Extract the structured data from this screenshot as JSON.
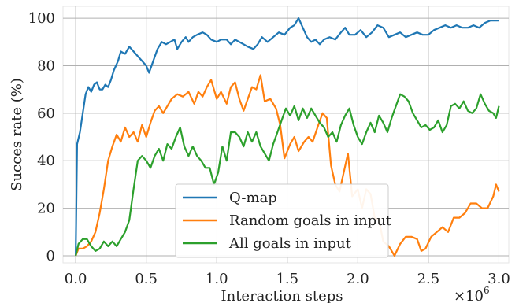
{
  "chart_data": {
    "type": "line",
    "xlabel": "Interaction steps",
    "ylabel": "Succes rate (%)",
    "x_multiplier_label": "×10",
    "x_multiplier_exp": "6",
    "xlim": [
      -0.09,
      3.07
    ],
    "ylim": [
      -3,
      105
    ],
    "xticks": [
      0.0,
      0.5,
      1.0,
      1.5,
      2.0,
      2.5,
      3.0
    ],
    "xtick_labels": [
      "0.0",
      "0.5",
      "1.0",
      "1.5",
      "2.0",
      "2.5",
      "3.0"
    ],
    "yticks": [
      0,
      20,
      40,
      60,
      80,
      100
    ],
    "ytick_labels": [
      "0",
      "20",
      "40",
      "60",
      "80",
      "100"
    ],
    "grid": true,
    "legend_position": "lower-center",
    "series": [
      {
        "name": "Q-map",
        "color": "#1f77b4",
        "points": [
          [
            0.0,
            0
          ],
          [
            0.01,
            47
          ],
          [
            0.03,
            52
          ],
          [
            0.05,
            60
          ],
          [
            0.07,
            68
          ],
          [
            0.09,
            71
          ],
          [
            0.11,
            69
          ],
          [
            0.13,
            72
          ],
          [
            0.15,
            73
          ],
          [
            0.17,
            70
          ],
          [
            0.19,
            70
          ],
          [
            0.21,
            72
          ],
          [
            0.23,
            71
          ],
          [
            0.25,
            74
          ],
          [
            0.27,
            78
          ],
          [
            0.3,
            82
          ],
          [
            0.32,
            86
          ],
          [
            0.35,
            85
          ],
          [
            0.38,
            88
          ],
          [
            0.41,
            86
          ],
          [
            0.44,
            84
          ],
          [
            0.47,
            82
          ],
          [
            0.5,
            80
          ],
          [
            0.52,
            77
          ],
          [
            0.55,
            82
          ],
          [
            0.58,
            87
          ],
          [
            0.61,
            90
          ],
          [
            0.64,
            89
          ],
          [
            0.67,
            90
          ],
          [
            0.7,
            91
          ],
          [
            0.72,
            87
          ],
          [
            0.75,
            90
          ],
          [
            0.78,
            92
          ],
          [
            0.8,
            90
          ],
          [
            0.83,
            92
          ],
          [
            0.86,
            93
          ],
          [
            0.9,
            94
          ],
          [
            0.93,
            93
          ],
          [
            0.96,
            91
          ],
          [
            1.0,
            90
          ],
          [
            1.03,
            91
          ],
          [
            1.07,
            91
          ],
          [
            1.1,
            89
          ],
          [
            1.13,
            91
          ],
          [
            1.16,
            90
          ],
          [
            1.19,
            89
          ],
          [
            1.22,
            88
          ],
          [
            1.26,
            87
          ],
          [
            1.29,
            89
          ],
          [
            1.32,
            92
          ],
          [
            1.36,
            90
          ],
          [
            1.4,
            92
          ],
          [
            1.44,
            94
          ],
          [
            1.48,
            93
          ],
          [
            1.52,
            96
          ],
          [
            1.55,
            97
          ],
          [
            1.58,
            100
          ],
          [
            1.61,
            96
          ],
          [
            1.64,
            92
          ],
          [
            1.67,
            90
          ],
          [
            1.7,
            91
          ],
          [
            1.73,
            89
          ],
          [
            1.76,
            91
          ],
          [
            1.8,
            92
          ],
          [
            1.84,
            91
          ],
          [
            1.88,
            94
          ],
          [
            1.91,
            96
          ],
          [
            1.94,
            93
          ],
          [
            1.98,
            93
          ],
          [
            2.02,
            95
          ],
          [
            2.06,
            92
          ],
          [
            2.1,
            94
          ],
          [
            2.14,
            97
          ],
          [
            2.18,
            96
          ],
          [
            2.22,
            92
          ],
          [
            2.26,
            93
          ],
          [
            2.3,
            94
          ],
          [
            2.34,
            92
          ],
          [
            2.38,
            93
          ],
          [
            2.42,
            94
          ],
          [
            2.46,
            93
          ],
          [
            2.5,
            93
          ],
          [
            2.54,
            95
          ],
          [
            2.58,
            96
          ],
          [
            2.62,
            97
          ],
          [
            2.66,
            96
          ],
          [
            2.7,
            97
          ],
          [
            2.74,
            96
          ],
          [
            2.78,
            96
          ],
          [
            2.82,
            97
          ],
          [
            2.86,
            96
          ],
          [
            2.9,
            98
          ],
          [
            2.94,
            99
          ],
          [
            2.98,
            99
          ],
          [
            3.0,
            99
          ]
        ]
      },
      {
        "name": "Random goals in input",
        "color": "#ff7f0e",
        "points": [
          [
            0.0,
            0
          ],
          [
            0.02,
            3
          ],
          [
            0.05,
            3
          ],
          [
            0.08,
            4
          ],
          [
            0.11,
            6
          ],
          [
            0.14,
            10
          ],
          [
            0.17,
            18
          ],
          [
            0.2,
            28
          ],
          [
            0.23,
            40
          ],
          [
            0.26,
            46
          ],
          [
            0.29,
            51
          ],
          [
            0.32,
            48
          ],
          [
            0.35,
            54
          ],
          [
            0.38,
            50
          ],
          [
            0.41,
            52
          ],
          [
            0.44,
            48
          ],
          [
            0.47,
            55
          ],
          [
            0.5,
            50
          ],
          [
            0.53,
            56
          ],
          [
            0.56,
            61
          ],
          [
            0.59,
            63
          ],
          [
            0.62,
            60
          ],
          [
            0.65,
            63
          ],
          [
            0.68,
            66
          ],
          [
            0.72,
            68
          ],
          [
            0.76,
            67
          ],
          [
            0.8,
            69
          ],
          [
            0.84,
            64
          ],
          [
            0.87,
            69
          ],
          [
            0.9,
            67
          ],
          [
            0.93,
            71
          ],
          [
            0.96,
            74
          ],
          [
            1.0,
            66
          ],
          [
            1.03,
            69
          ],
          [
            1.07,
            64
          ],
          [
            1.1,
            71
          ],
          [
            1.13,
            73
          ],
          [
            1.16,
            66
          ],
          [
            1.19,
            61
          ],
          [
            1.22,
            66
          ],
          [
            1.25,
            71
          ],
          [
            1.28,
            70
          ],
          [
            1.31,
            76
          ],
          [
            1.34,
            65
          ],
          [
            1.38,
            66
          ],
          [
            1.42,
            62
          ],
          [
            1.45,
            55
          ],
          [
            1.48,
            41
          ],
          [
            1.52,
            47
          ],
          [
            1.55,
            50
          ],
          [
            1.58,
            44
          ],
          [
            1.62,
            48
          ],
          [
            1.65,
            50
          ],
          [
            1.68,
            48
          ],
          [
            1.72,
            55
          ],
          [
            1.75,
            60
          ],
          [
            1.78,
            58
          ],
          [
            1.81,
            38
          ],
          [
            1.84,
            30
          ],
          [
            1.87,
            27
          ],
          [
            1.9,
            35
          ],
          [
            1.93,
            43
          ],
          [
            1.96,
            25
          ],
          [
            2.0,
            28
          ],
          [
            2.03,
            20
          ],
          [
            2.06,
            28
          ],
          [
            2.09,
            26
          ],
          [
            2.12,
            16
          ],
          [
            2.15,
            15
          ],
          [
            2.18,
            6
          ],
          [
            2.22,
            4
          ],
          [
            2.26,
            0
          ],
          [
            2.3,
            5
          ],
          [
            2.34,
            8
          ],
          [
            2.38,
            8
          ],
          [
            2.42,
            7
          ],
          [
            2.45,
            2
          ],
          [
            2.48,
            3
          ],
          [
            2.52,
            8
          ],
          [
            2.56,
            10
          ],
          [
            2.6,
            12
          ],
          [
            2.64,
            10
          ],
          [
            2.68,
            16
          ],
          [
            2.72,
            16
          ],
          [
            2.76,
            18
          ],
          [
            2.8,
            22
          ],
          [
            2.84,
            22
          ],
          [
            2.88,
            20
          ],
          [
            2.92,
            20
          ],
          [
            2.96,
            25
          ],
          [
            2.98,
            30
          ],
          [
            3.0,
            27
          ]
        ]
      },
      {
        "name": "All goals in input",
        "color": "#2ca02c",
        "points": [
          [
            0.0,
            0
          ],
          [
            0.02,
            5
          ],
          [
            0.05,
            7
          ],
          [
            0.08,
            7
          ],
          [
            0.11,
            4
          ],
          [
            0.14,
            2
          ],
          [
            0.17,
            3
          ],
          [
            0.2,
            6
          ],
          [
            0.23,
            4
          ],
          [
            0.26,
            6
          ],
          [
            0.29,
            4
          ],
          [
            0.32,
            7
          ],
          [
            0.35,
            10
          ],
          [
            0.38,
            15
          ],
          [
            0.41,
            28
          ],
          [
            0.44,
            40
          ],
          [
            0.47,
            42
          ],
          [
            0.5,
            40
          ],
          [
            0.53,
            37
          ],
          [
            0.56,
            42
          ],
          [
            0.59,
            45
          ],
          [
            0.62,
            40
          ],
          [
            0.65,
            47
          ],
          [
            0.68,
            45
          ],
          [
            0.71,
            50
          ],
          [
            0.74,
            54
          ],
          [
            0.77,
            46
          ],
          [
            0.8,
            42
          ],
          [
            0.83,
            46
          ],
          [
            0.86,
            42
          ],
          [
            0.89,
            40
          ],
          [
            0.92,
            37
          ],
          [
            0.95,
            37
          ],
          [
            0.98,
            30
          ],
          [
            1.01,
            35
          ],
          [
            1.04,
            46
          ],
          [
            1.07,
            40
          ],
          [
            1.1,
            52
          ],
          [
            1.13,
            52
          ],
          [
            1.16,
            50
          ],
          [
            1.19,
            46
          ],
          [
            1.22,
            52
          ],
          [
            1.25,
            48
          ],
          [
            1.28,
            52
          ],
          [
            1.31,
            46
          ],
          [
            1.34,
            43
          ],
          [
            1.37,
            40
          ],
          [
            1.4,
            47
          ],
          [
            1.43,
            52
          ],
          [
            1.46,
            57
          ],
          [
            1.49,
            62
          ],
          [
            1.52,
            59
          ],
          [
            1.55,
            63
          ],
          [
            1.58,
            57
          ],
          [
            1.61,
            62
          ],
          [
            1.64,
            58
          ],
          [
            1.67,
            62
          ],
          [
            1.7,
            59
          ],
          [
            1.73,
            56
          ],
          [
            1.76,
            54
          ],
          [
            1.79,
            50
          ],
          [
            1.82,
            52
          ],
          [
            1.85,
            48
          ],
          [
            1.88,
            55
          ],
          [
            1.91,
            59
          ],
          [
            1.94,
            62
          ],
          [
            1.97,
            55
          ],
          [
            2.0,
            50
          ],
          [
            2.03,
            47
          ],
          [
            2.06,
            52
          ],
          [
            2.09,
            56
          ],
          [
            2.12,
            52
          ],
          [
            2.15,
            59
          ],
          [
            2.18,
            56
          ],
          [
            2.21,
            52
          ],
          [
            2.24,
            58
          ],
          [
            2.27,
            63
          ],
          [
            2.3,
            68
          ],
          [
            2.33,
            67
          ],
          [
            2.36,
            65
          ],
          [
            2.39,
            60
          ],
          [
            2.42,
            57
          ],
          [
            2.45,
            54
          ],
          [
            2.48,
            55
          ],
          [
            2.51,
            53
          ],
          [
            2.54,
            54
          ],
          [
            2.57,
            57
          ],
          [
            2.6,
            52
          ],
          [
            2.63,
            55
          ],
          [
            2.66,
            63
          ],
          [
            2.69,
            64
          ],
          [
            2.72,
            62
          ],
          [
            2.75,
            65
          ],
          [
            2.78,
            61
          ],
          [
            2.81,
            60
          ],
          [
            2.84,
            62
          ],
          [
            2.87,
            68
          ],
          [
            2.9,
            64
          ],
          [
            2.93,
            61
          ],
          [
            2.96,
            60
          ],
          [
            2.98,
            58
          ],
          [
            3.0,
            63
          ]
        ]
      }
    ]
  }
}
